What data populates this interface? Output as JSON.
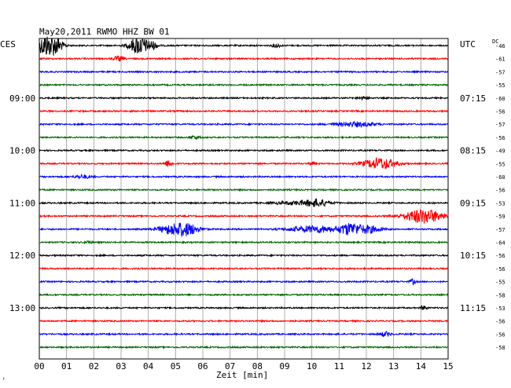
{
  "header": {
    "title": "May20,2011   RWMO HHZ BW 01",
    "left_zone": "CES",
    "right_zone": "UTC",
    "dc_label": "DC"
  },
  "footer": {
    "xlabel": "Zeit [min]",
    "corner_mark": "↑"
  },
  "colors": {
    "line_cycle": [
      "#000000",
      "#ff0000",
      "#0000ff",
      "#006400"
    ],
    "grid": "#999999"
  },
  "chart_data": {
    "type": "line",
    "title": "May20,2011   RWMO HHZ BW 01",
    "xlabel": "Zeit [min]",
    "ylabel": "",
    "xlim": [
      0,
      15
    ],
    "x_ticks": [
      "00",
      "01",
      "02",
      "03",
      "04",
      "05",
      "06",
      "07",
      "08",
      "09",
      "10",
      "11",
      "12",
      "13",
      "14",
      "15"
    ],
    "grid": true,
    "rows_per_hour": 4,
    "left_time_labels": [
      {
        "row": 4,
        "text": "09:00"
      },
      {
        "row": 8,
        "text": "10:00"
      },
      {
        "row": 12,
        "text": "11:00"
      },
      {
        "row": 16,
        "text": "12:00"
      },
      {
        "row": 20,
        "text": "13:00"
      }
    ],
    "right_time_labels": [
      {
        "row": 4,
        "text": "07:15"
      },
      {
        "row": 8,
        "text": "08:15"
      },
      {
        "row": 12,
        "text": "09:15"
      },
      {
        "row": 16,
        "text": "10:15"
      },
      {
        "row": 20,
        "text": "11:15"
      }
    ],
    "dc_offsets": [
      "-46",
      "-61",
      "-57",
      "-55",
      "-60",
      "-56",
      "-57",
      "-56",
      "-49",
      "-55",
      "-60",
      "-56",
      "-53",
      "-59",
      "-57",
      "-64",
      "-56",
      "-56",
      "-55",
      "-58",
      "-53",
      "-56",
      "-56",
      "-58"
    ],
    "events": [
      {
        "row": 0,
        "x": 0.2,
        "amp": 1.8,
        "dur": 0.25
      },
      {
        "row": 0,
        "x": 0.6,
        "amp": 1.6,
        "dur": 0.25
      },
      {
        "row": 0,
        "x": 3.65,
        "amp": 1.6,
        "dur": 0.35
      },
      {
        "row": 0,
        "x": 4.15,
        "amp": 0.6,
        "dur": 0.2
      },
      {
        "row": 0,
        "x": 8.7,
        "amp": 0.35,
        "dur": 0.15
      },
      {
        "row": 1,
        "x": 2.9,
        "amp": 0.4,
        "dur": 0.2
      },
      {
        "row": 4,
        "x": 11.9,
        "amp": 0.3,
        "dur": 0.2
      },
      {
        "row": 6,
        "x": 11.6,
        "amp": 0.4,
        "dur": 0.7
      },
      {
        "row": 7,
        "x": 5.7,
        "amp": 0.3,
        "dur": 0.2
      },
      {
        "row": 9,
        "x": 4.75,
        "amp": 0.6,
        "dur": 0.15
      },
      {
        "row": 9,
        "x": 10.0,
        "amp": 0.3,
        "dur": 0.1
      },
      {
        "row": 9,
        "x": 12.5,
        "amp": 1.0,
        "dur": 0.6
      },
      {
        "row": 10,
        "x": 1.6,
        "amp": 0.3,
        "dur": 0.3
      },
      {
        "row": 12,
        "x": 9.6,
        "amp": 0.3,
        "dur": 0.9
      },
      {
        "row": 12,
        "x": 10.2,
        "amp": 0.5,
        "dur": 0.4
      },
      {
        "row": 13,
        "x": 14.1,
        "amp": 1.3,
        "dur": 0.7
      },
      {
        "row": 14,
        "x": 5.0,
        "amp": 1.0,
        "dur": 0.6
      },
      {
        "row": 14,
        "x": 5.5,
        "amp": 0.6,
        "dur": 0.4
      },
      {
        "row": 14,
        "x": 10.1,
        "amp": 0.6,
        "dur": 0.9
      },
      {
        "row": 14,
        "x": 11.35,
        "amp": 0.9,
        "dur": 0.35
      },
      {
        "row": 14,
        "x": 12.0,
        "amp": 0.7,
        "dur": 0.5
      },
      {
        "row": 15,
        "x": 1.8,
        "amp": 0.3,
        "dur": 0.1
      },
      {
        "row": 18,
        "x": 13.7,
        "amp": 0.5,
        "dur": 0.1
      },
      {
        "row": 20,
        "x": 14.1,
        "amp": 0.4,
        "dur": 0.1
      },
      {
        "row": 22,
        "x": 12.7,
        "amp": 0.4,
        "dur": 0.2
      }
    ]
  }
}
